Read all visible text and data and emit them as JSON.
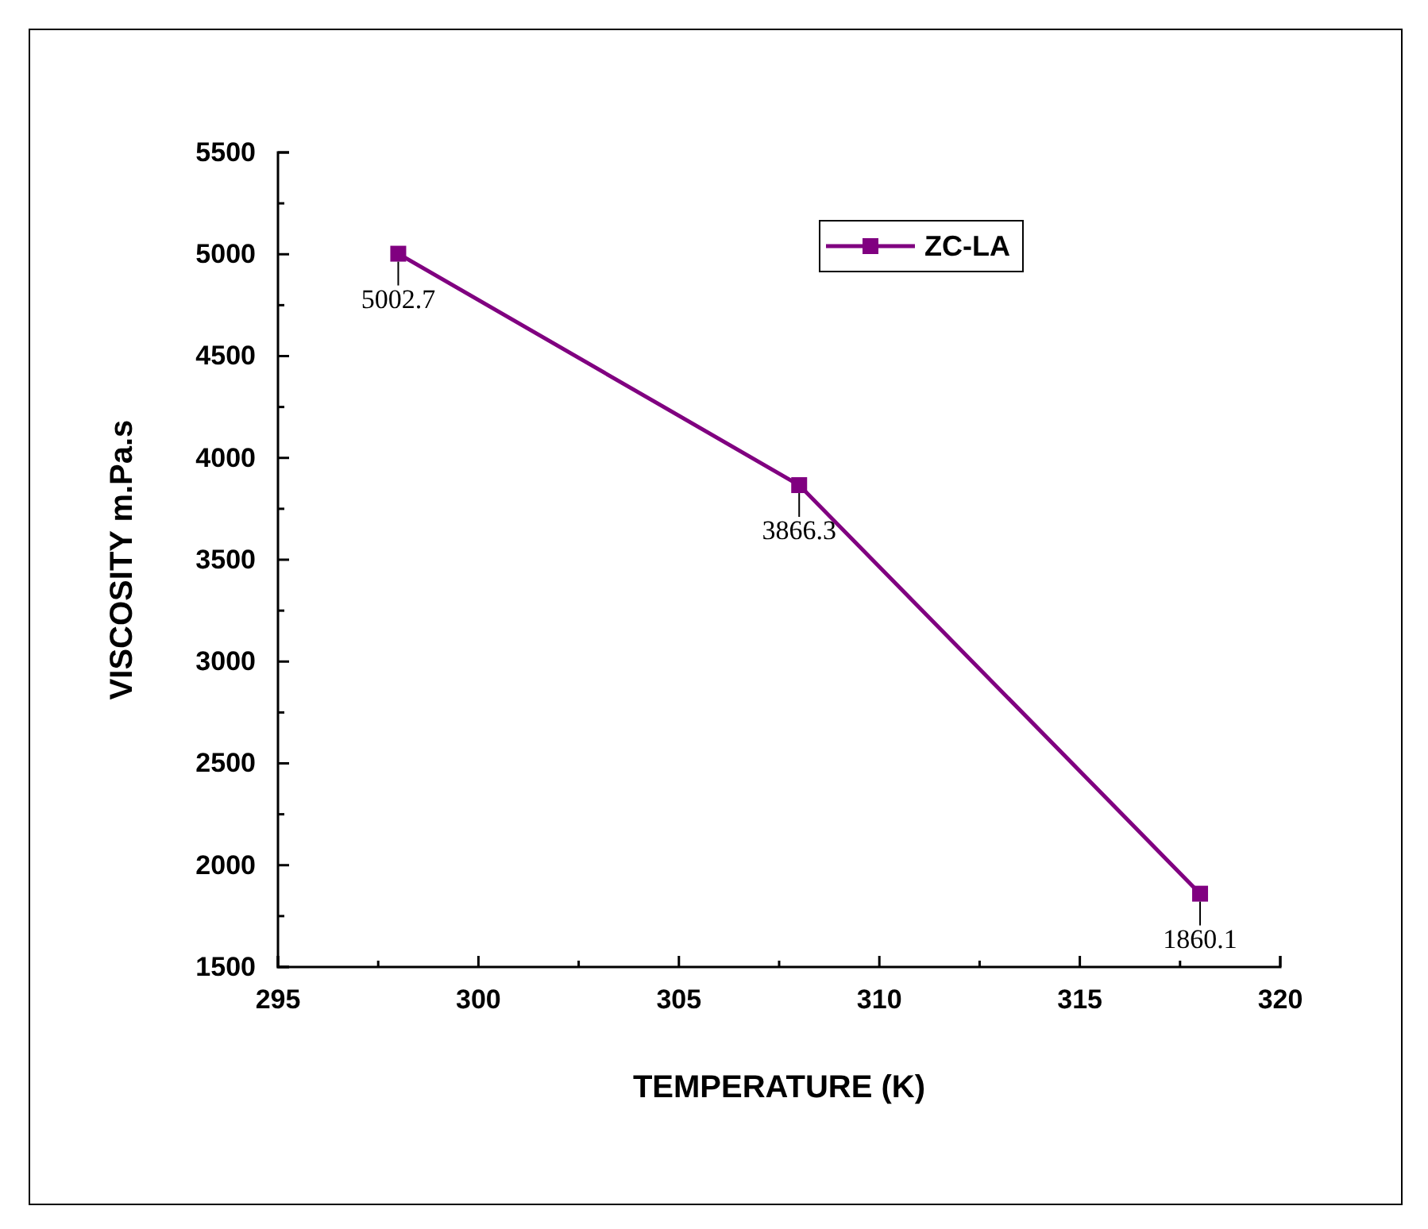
{
  "chart_data": {
    "type": "line",
    "xlabel": "TEMPERATURE (K)",
    "ylabel": "VISCOSITY m.Pa.s",
    "x": [
      298,
      308,
      318
    ],
    "series": [
      {
        "name": "ZC-LA",
        "color": "#800080",
        "values": [
          5002.7,
          3866.3,
          1860.1
        ]
      }
    ],
    "xlim": [
      295,
      320
    ],
    "xticks": [
      295,
      {
        "value": 297.5,
        "label": null
      },
      300,
      {
        "value": 302.5,
        "label": null
      },
      305,
      {
        "value": 307.5,
        "label": null
      },
      310,
      {
        "value": 312.5,
        "label": null
      },
      315,
      {
        "value": 317.5,
        "label": null
      },
      320
    ],
    "ylim": [
      1500,
      5500
    ],
    "yticks": [
      1500,
      {
        "value": 1750,
        "label": null
      },
      2000,
      {
        "value": 2250,
        "label": null
      },
      2500,
      {
        "value": 2750,
        "label": null
      },
      3000,
      {
        "value": 3250,
        "label": null
      },
      3500,
      {
        "value": 3750,
        "label": null
      },
      4000,
      {
        "value": 4250,
        "label": null
      },
      4500,
      {
        "value": 4750,
        "label": null
      },
      5000,
      {
        "value": 5250,
        "label": null
      },
      5500
    ],
    "marker": "square",
    "line_style": "solid",
    "legend": "top right",
    "data_labels": true,
    "grid": false
  }
}
